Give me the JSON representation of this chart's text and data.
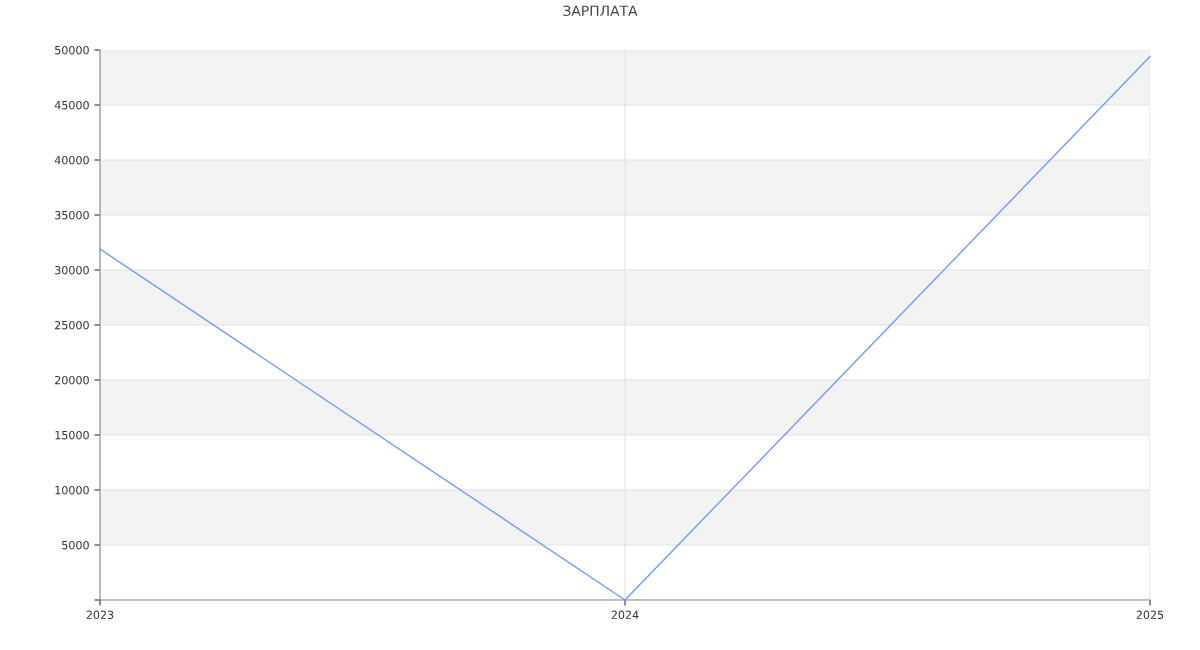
{
  "chart_data": {
    "type": "line",
    "title": "ЗАРПЛАТА",
    "x": [
      2023,
      2024,
      2025
    ],
    "series": [
      {
        "color": "#6f9cf5",
        "values": [
          31900,
          0,
          49400
        ]
      }
    ],
    "xlim": [
      2023,
      2025
    ],
    "xticks": [
      2023,
      2024,
      2025
    ],
    "ylim": [
      0,
      50000
    ],
    "yticks": [
      {
        "value": 0,
        "label": null
      },
      5000,
      10000,
      15000,
      20000,
      25000,
      30000,
      35000,
      40000,
      45000,
      50000
    ],
    "grid": true,
    "marker": "none",
    "line_style": "solid"
  }
}
